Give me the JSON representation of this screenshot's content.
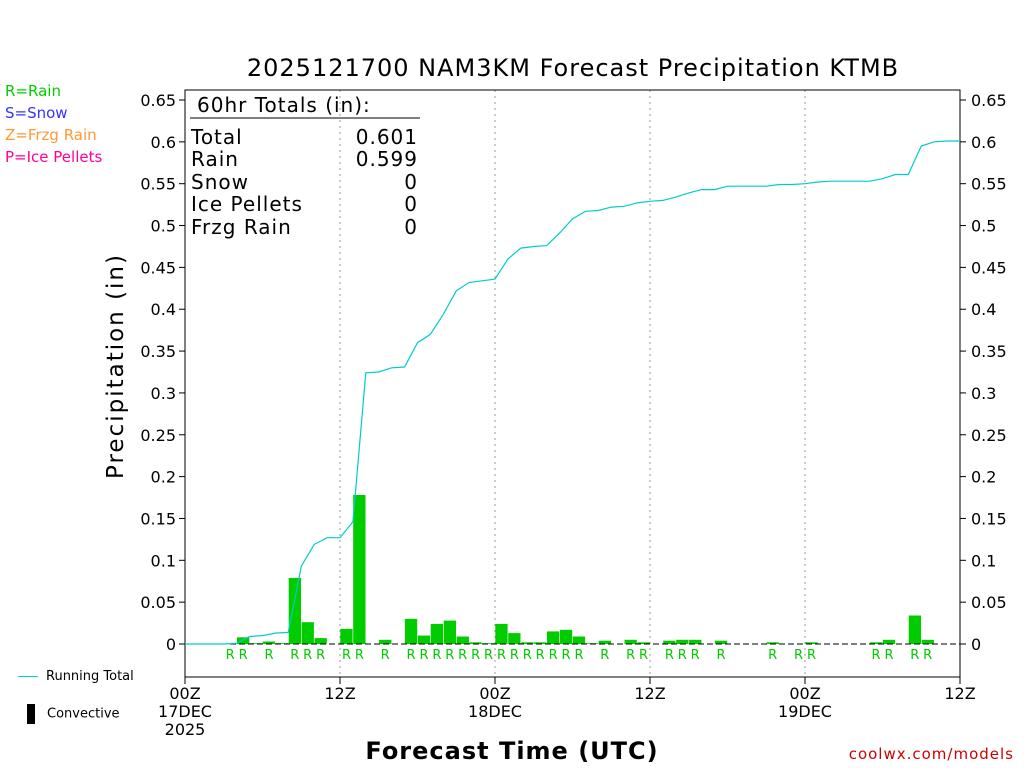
{
  "chart_data": {
    "type": "bar",
    "title": "2025121700 NAM3KM Forecast Precipitation KTMB",
    "xlabel": "Forecast Time (UTC)",
    "ylabel": "Precipitation (in)",
    "ylim": [
      -0.04,
      0.66
    ],
    "y_ticks": [
      "0.65",
      "0.6",
      "0.55",
      "0.5",
      "0.45",
      "0.4",
      "0.35",
      "0.3",
      "0.25",
      "0.2",
      "0.15",
      "0.1",
      "0.05",
      "0"
    ],
    "x_range_hours": [
      0,
      60
    ],
    "x_ticks": [
      {
        "hour": 0,
        "lines": [
          "00Z",
          "17DEC",
          "2025"
        ]
      },
      {
        "hour": 12,
        "lines": [
          "12Z"
        ]
      },
      {
        "hour": 24,
        "lines": [
          "00Z",
          "18DEC"
        ]
      },
      {
        "hour": 36,
        "lines": [
          "12Z"
        ]
      },
      {
        "hour": 48,
        "lines": [
          "00Z",
          "19DEC"
        ]
      },
      {
        "hour": 60,
        "lines": [
          "12Z"
        ]
      }
    ],
    "gridlines_hours": [
      12,
      24,
      36,
      48
    ],
    "hourly_precip": [
      {
        "hour": 5,
        "value": 0.008
      },
      {
        "hour": 6,
        "value": 0.001
      },
      {
        "hour": 7,
        "value": 0.003
      },
      {
        "hour": 8,
        "value": 0.001
      },
      {
        "hour": 9,
        "value": 0.079
      },
      {
        "hour": 10,
        "value": 0.026
      },
      {
        "hour": 11,
        "value": 0.007
      },
      {
        "hour": 13,
        "value": 0.018
      },
      {
        "hour": 14,
        "value": 0.178
      },
      {
        "hour": 16,
        "value": 0.005
      },
      {
        "hour": 18,
        "value": 0.03
      },
      {
        "hour": 19,
        "value": 0.01
      },
      {
        "hour": 20,
        "value": 0.024
      },
      {
        "hour": 21,
        "value": 0.028
      },
      {
        "hour": 22,
        "value": 0.009
      },
      {
        "hour": 23,
        "value": 0.002
      },
      {
        "hour": 24,
        "value": 0.001
      },
      {
        "hour": 25,
        "value": 0.024
      },
      {
        "hour": 26,
        "value": 0.013
      },
      {
        "hour": 27,
        "value": 0.002
      },
      {
        "hour": 28,
        "value": 0.002
      },
      {
        "hour": 29,
        "value": 0.015
      },
      {
        "hour": 30,
        "value": 0.017
      },
      {
        "hour": 31,
        "value": 0.009
      },
      {
        "hour": 32,
        "value": 0.001
      },
      {
        "hour": 33,
        "value": 0.004
      },
      {
        "hour": 35,
        "value": 0.005
      },
      {
        "hour": 36,
        "value": 0.002
      },
      {
        "hour": 38,
        "value": 0.004
      },
      {
        "hour": 39,
        "value": 0.005
      },
      {
        "hour": 40,
        "value": 0.005
      },
      {
        "hour": 42,
        "value": 0.004
      },
      {
        "hour": 46,
        "value": 0.002
      },
      {
        "hour": 49,
        "value": 0.002
      },
      {
        "hour": 54,
        "value": 0.002
      },
      {
        "hour": 55,
        "value": 0.005
      },
      {
        "hour": 57,
        "value": 0.034
      },
      {
        "hour": 58,
        "value": 0.005
      }
    ],
    "running_total": [
      {
        "hour": 0,
        "value": 0
      },
      {
        "hour": 3,
        "value": 0
      },
      {
        "hour": 4,
        "value": 0.001
      },
      {
        "hour": 5,
        "value": 0.009
      },
      {
        "hour": 6,
        "value": 0.01
      },
      {
        "hour": 7,
        "value": 0.013
      },
      {
        "hour": 8,
        "value": 0.014
      },
      {
        "hour": 9,
        "value": 0.093
      },
      {
        "hour": 10,
        "value": 0.119
      },
      {
        "hour": 11,
        "value": 0.127
      },
      {
        "hour": 12,
        "value": 0.127
      },
      {
        "hour": 13,
        "value": 0.146
      },
      {
        "hour": 14,
        "value": 0.324
      },
      {
        "hour": 15,
        "value": 0.325
      },
      {
        "hour": 16,
        "value": 0.33
      },
      {
        "hour": 17,
        "value": 0.331
      },
      {
        "hour": 18,
        "value": 0.36
      },
      {
        "hour": 19,
        "value": 0.37
      },
      {
        "hour": 20,
        "value": 0.394
      },
      {
        "hour": 21,
        "value": 0.422
      },
      {
        "hour": 22,
        "value": 0.432
      },
      {
        "hour": 23,
        "value": 0.434
      },
      {
        "hour": 24,
        "value": 0.436
      },
      {
        "hour": 25,
        "value": 0.46
      },
      {
        "hour": 26,
        "value": 0.473
      },
      {
        "hour": 27,
        "value": 0.475
      },
      {
        "hour": 28,
        "value": 0.476
      },
      {
        "hour": 29,
        "value": 0.491
      },
      {
        "hour": 30,
        "value": 0.508
      },
      {
        "hour": 31,
        "value": 0.517
      },
      {
        "hour": 32,
        "value": 0.518
      },
      {
        "hour": 33,
        "value": 0.522
      },
      {
        "hour": 34,
        "value": 0.523
      },
      {
        "hour": 35,
        "value": 0.527
      },
      {
        "hour": 36,
        "value": 0.529
      },
      {
        "hour": 37,
        "value": 0.53
      },
      {
        "hour": 38,
        "value": 0.534
      },
      {
        "hour": 39,
        "value": 0.539
      },
      {
        "hour": 40,
        "value": 0.543
      },
      {
        "hour": 41,
        "value": 0.543
      },
      {
        "hour": 42,
        "value": 0.547
      },
      {
        "hour": 43,
        "value": 0.547
      },
      {
        "hour": 44,
        "value": 0.547
      },
      {
        "hour": 45,
        "value": 0.547
      },
      {
        "hour": 46,
        "value": 0.549
      },
      {
        "hour": 47,
        "value": 0.549
      },
      {
        "hour": 48,
        "value": 0.55
      },
      {
        "hour": 49,
        "value": 0.552
      },
      {
        "hour": 50,
        "value": 0.553
      },
      {
        "hour": 51,
        "value": 0.553
      },
      {
        "hour": 52,
        "value": 0.553
      },
      {
        "hour": 53,
        "value": 0.553
      },
      {
        "hour": 54,
        "value": 0.556
      },
      {
        "hour": 55,
        "value": 0.561
      },
      {
        "hour": 56,
        "value": 0.561
      },
      {
        "hour": 57,
        "value": 0.595
      },
      {
        "hour": 58,
        "value": 0.6
      },
      {
        "hour": 59,
        "value": 0.601
      },
      {
        "hour": 60,
        "value": 0.601
      }
    ],
    "precip_type_markers": [
      {
        "hour": 4,
        "type": "R"
      },
      {
        "hour": 5,
        "type": "R"
      },
      {
        "hour": 7,
        "type": "R"
      },
      {
        "hour": 9,
        "type": "R"
      },
      {
        "hour": 10,
        "type": "R"
      },
      {
        "hour": 11,
        "type": "R"
      },
      {
        "hour": 13,
        "type": "R"
      },
      {
        "hour": 14,
        "type": "R"
      },
      {
        "hour": 16,
        "type": "R"
      },
      {
        "hour": 18,
        "type": "R"
      },
      {
        "hour": 19,
        "type": "R"
      },
      {
        "hour": 20,
        "type": "R"
      },
      {
        "hour": 21,
        "type": "R"
      },
      {
        "hour": 22,
        "type": "R"
      },
      {
        "hour": 23,
        "type": "R"
      },
      {
        "hour": 24,
        "type": "R"
      },
      {
        "hour": 25,
        "type": "R"
      },
      {
        "hour": 26,
        "type": "R"
      },
      {
        "hour": 27,
        "type": "R"
      },
      {
        "hour": 28,
        "type": "R"
      },
      {
        "hour": 29,
        "type": "R"
      },
      {
        "hour": 30,
        "type": "R"
      },
      {
        "hour": 31,
        "type": "R"
      },
      {
        "hour": 33,
        "type": "R"
      },
      {
        "hour": 35,
        "type": "R"
      },
      {
        "hour": 36,
        "type": "R"
      },
      {
        "hour": 38,
        "type": "R"
      },
      {
        "hour": 39,
        "type": "R"
      },
      {
        "hour": 40,
        "type": "R"
      },
      {
        "hour": 42,
        "type": "R"
      },
      {
        "hour": 46,
        "type": "R"
      },
      {
        "hour": 48,
        "type": "R"
      },
      {
        "hour": 49,
        "type": "R"
      },
      {
        "hour": 54,
        "type": "R"
      },
      {
        "hour": 55,
        "type": "R"
      },
      {
        "hour": 57,
        "type": "R"
      },
      {
        "hour": 58,
        "type": "R"
      }
    ],
    "totals_box": {
      "heading": "60hr Totals (in):",
      "rows": [
        {
          "label": "Total",
          "value": "0.601"
        },
        {
          "label": "Rain",
          "value": "0.599"
        },
        {
          "label": "Snow",
          "value": "0"
        },
        {
          "label": "Ice Pellets",
          "value": "0"
        },
        {
          "label": "Frzg Rain",
          "value": "0"
        }
      ]
    }
  },
  "legend": {
    "rain": "R=Rain",
    "snow": "S=Snow",
    "frzg_rain": "Z=Frzg Rain",
    "ice_pellets": "P=Ice Pellets",
    "running_total": "Running Total",
    "convective": "Convective"
  },
  "credit": "coolwx.com/models",
  "colors": {
    "rain": "#00cc00",
    "snow": "#3333ff",
    "frzg_rain": "#ff9933",
    "ice_pellets": "#ff0099",
    "running_total": "#00cccc",
    "bars": "#00cc00",
    "credit": "#cc0000"
  }
}
